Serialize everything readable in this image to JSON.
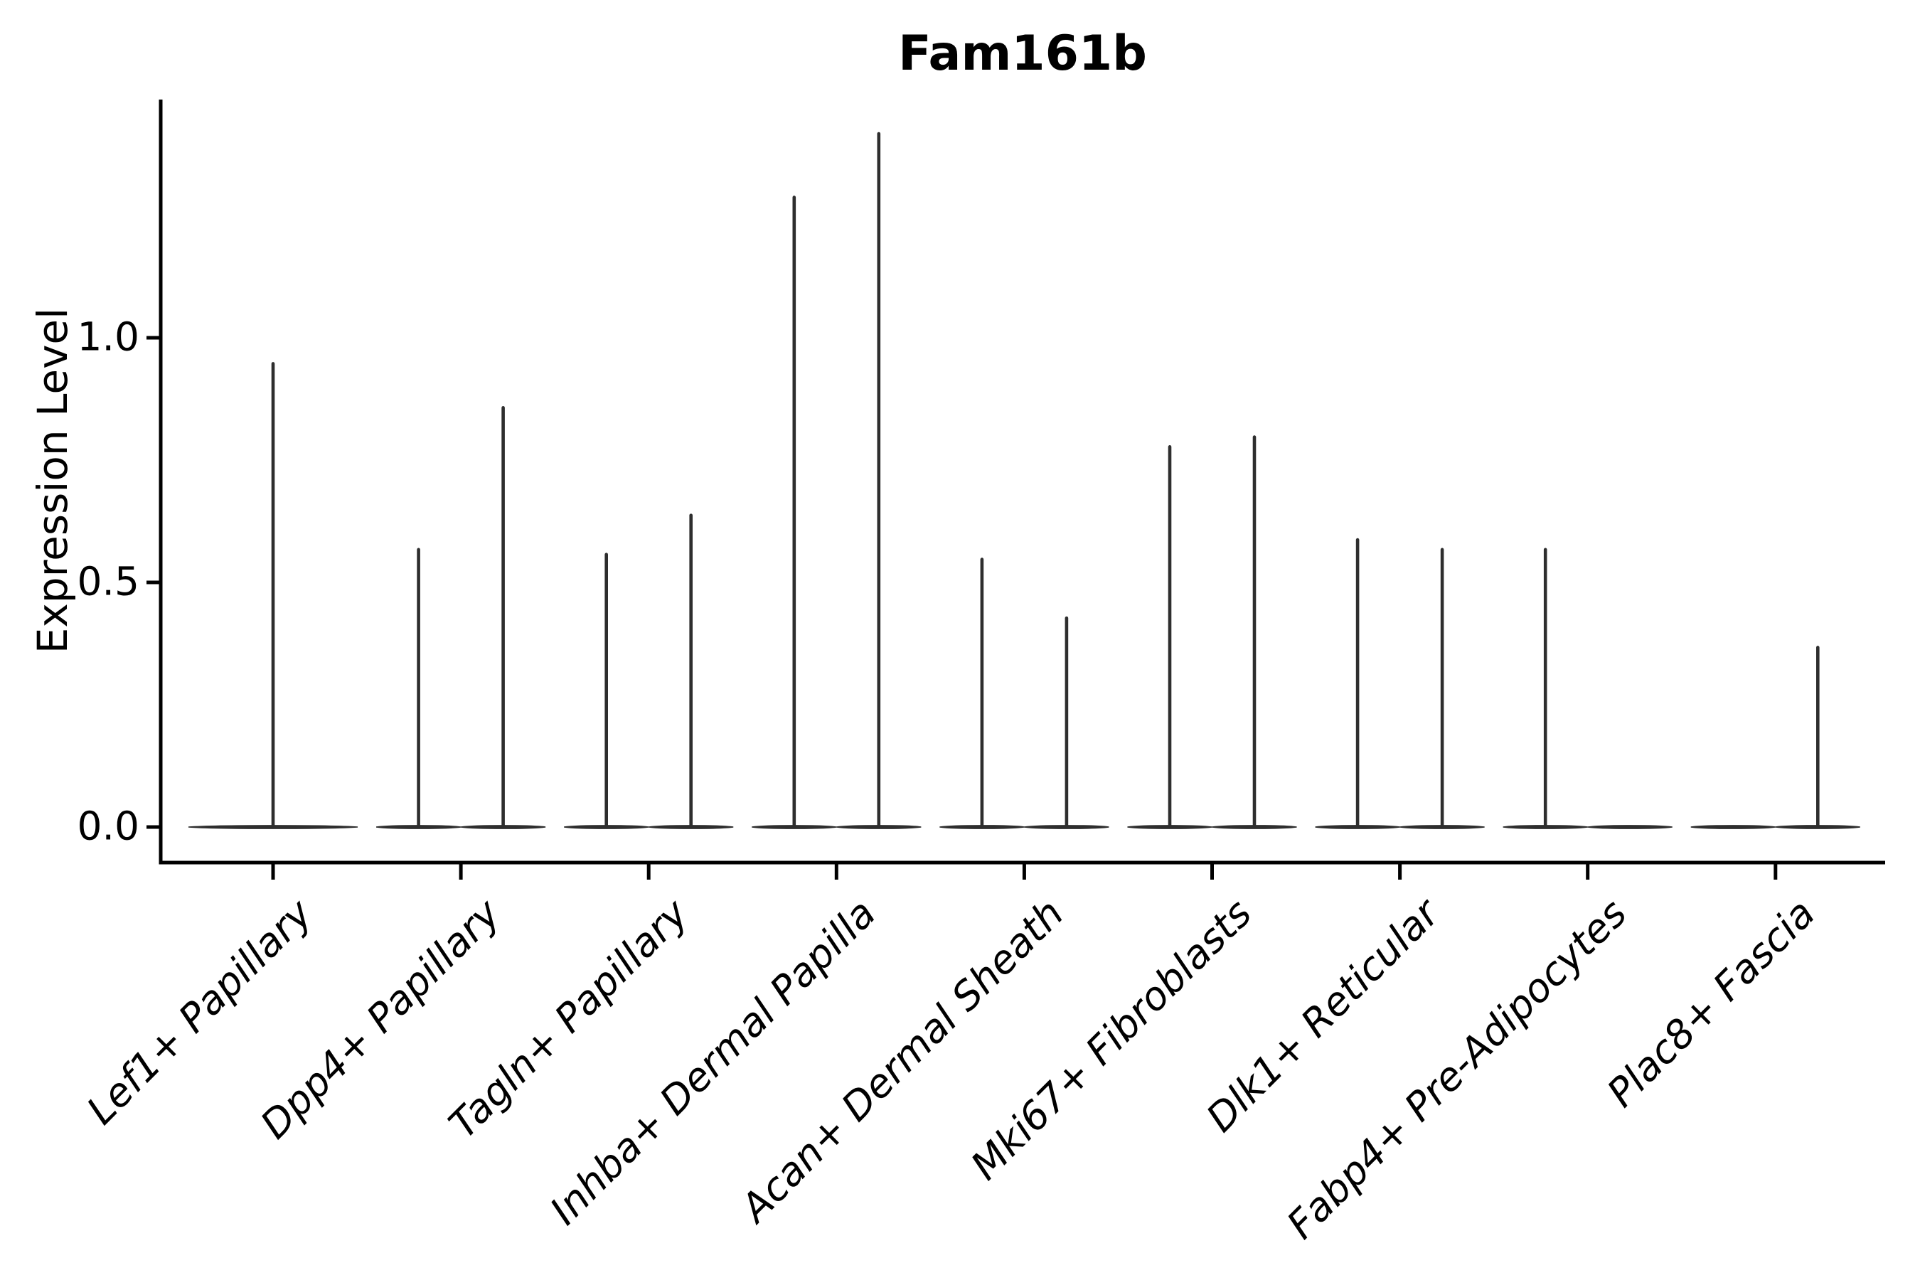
{
  "chart_data": {
    "type": "violin",
    "title": "Fam161b",
    "xlabel": "",
    "ylabel": "Expression Level",
    "ytick_labels": [
      "0.0",
      "0.5",
      "1.0"
    ],
    "ytick_values": [
      0.0,
      0.5,
      1.0
    ],
    "ylim": [
      -0.07,
      1.49
    ],
    "grid": false,
    "legend": false,
    "baseline_value": 0,
    "categories": [
      "Lef1+ Papillary",
      "Dpp4+ Papillary",
      "Tagln+ Papillary",
      "Inhba+ Dermal Papilla",
      "Acan+ Dermal Sheath",
      "Mki67+ Fibroblasts",
      "Dlk1+ Reticular",
      "Fabp4+ Pre-Adipocytes",
      "Plac8+ Fascia"
    ],
    "violins": [
      {
        "category": "Lef1+ Papillary",
        "parts": [
          {
            "position": "center",
            "max_expression": 0.95
          }
        ]
      },
      {
        "category": "Dpp4+ Papillary",
        "parts": [
          {
            "position": "left",
            "max_expression": 0.57
          },
          {
            "position": "right",
            "max_expression": 0.86
          }
        ]
      },
      {
        "category": "Tagln+ Papillary",
        "parts": [
          {
            "position": "left",
            "max_expression": 0.56
          },
          {
            "position": "right",
            "max_expression": 0.64
          }
        ]
      },
      {
        "category": "Inhba+ Dermal Papilla",
        "parts": [
          {
            "position": "left",
            "max_expression": 1.29
          },
          {
            "position": "right",
            "max_expression": 1.42
          }
        ]
      },
      {
        "category": "Acan+ Dermal Sheath",
        "parts": [
          {
            "position": "left",
            "max_expression": 0.55
          },
          {
            "position": "right",
            "max_expression": 0.43
          }
        ]
      },
      {
        "category": "Mki67+ Fibroblasts",
        "parts": [
          {
            "position": "left",
            "max_expression": 0.78
          },
          {
            "position": "right",
            "max_expression": 0.8
          }
        ]
      },
      {
        "category": "Dlk1+ Reticular",
        "parts": [
          {
            "position": "left",
            "max_expression": 0.59
          },
          {
            "position": "right",
            "max_expression": 0.57
          }
        ]
      },
      {
        "category": "Fabp4+ Pre-Adipocytes",
        "parts": [
          {
            "position": "left",
            "max_expression": 0.57
          },
          {
            "position": "right",
            "max_expression": 0.0
          }
        ]
      },
      {
        "category": "Plac8+ Fascia",
        "parts": [
          {
            "position": "left",
            "max_expression": 0.0
          },
          {
            "position": "right",
            "max_expression": 0.37
          }
        ]
      }
    ]
  },
  "style": {
    "ink_color": "#000000",
    "violin_color": "#2e2e2e",
    "background_color": "#ffffff"
  }
}
